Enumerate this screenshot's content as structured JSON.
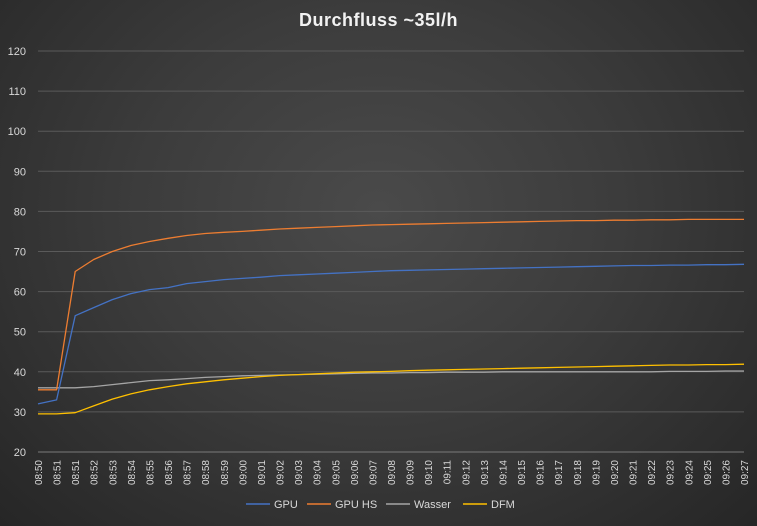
{
  "chart_data": {
    "type": "line",
    "title": "Durchfluss ~35l/h",
    "xlabel": "",
    "ylabel": "",
    "ylim": [
      20,
      120
    ],
    "yticks": [
      20,
      30,
      40,
      50,
      60,
      70,
      80,
      90,
      100,
      110,
      120
    ],
    "grid": "horizontal",
    "legend_position": "bottom",
    "categories": [
      "08:50",
      "08:51",
      "08:51",
      "08:52",
      "08:53",
      "08:54",
      "08:55",
      "08:56",
      "08:57",
      "08:58",
      "08:59",
      "09:00",
      "09:01",
      "09:02",
      "09:03",
      "09:04",
      "09:05",
      "09:06",
      "09:07",
      "09:08",
      "09:09",
      "09:10",
      "09:11",
      "09:12",
      "09:13",
      "09:14",
      "09:15",
      "09:16",
      "09:17",
      "09:18",
      "09:19",
      "09:20",
      "09:21",
      "09:22",
      "09:23",
      "09:24",
      "09:25",
      "09:26",
      "09:27"
    ],
    "series": [
      {
        "name": "GPU",
        "color": "#4472c4",
        "values": [
          32,
          33,
          54,
          56,
          58,
          59.5,
          60.5,
          61,
          62,
          62.5,
          63,
          63.3,
          63.6,
          64,
          64.2,
          64.4,
          64.6,
          64.8,
          65,
          65.2,
          65.3,
          65.4,
          65.5,
          65.6,
          65.7,
          65.8,
          65.9,
          66,
          66.1,
          66.2,
          66.3,
          66.4,
          66.5,
          66.5,
          66.6,
          66.6,
          66.7,
          66.7,
          66.8
        ]
      },
      {
        "name": "GPU HS",
        "color": "#ed7d31",
        "values": [
          35.5,
          35.5,
          65,
          68,
          70,
          71.5,
          72.5,
          73.3,
          74,
          74.5,
          74.8,
          75,
          75.3,
          75.6,
          75.8,
          76,
          76.2,
          76.4,
          76.6,
          76.7,
          76.8,
          76.9,
          77,
          77.1,
          77.2,
          77.3,
          77.4,
          77.5,
          77.6,
          77.7,
          77.7,
          77.8,
          77.8,
          77.9,
          77.9,
          78,
          78,
          78,
          78
        ]
      },
      {
        "name": "Wasser",
        "color": "#a5a5a5",
        "values": [
          36,
          36,
          36,
          36.3,
          36.8,
          37.3,
          37.8,
          38,
          38.3,
          38.6,
          38.8,
          39,
          39.1,
          39.2,
          39.3,
          39.4,
          39.5,
          39.6,
          39.7,
          39.7,
          39.8,
          39.8,
          39.9,
          39.9,
          39.9,
          40,
          40,
          40,
          40,
          40,
          40,
          40,
          40,
          40,
          40.1,
          40.1,
          40.1,
          40.2,
          40.2
        ]
      },
      {
        "name": "DFM",
        "color": "#ffc000",
        "values": [
          29.5,
          29.5,
          29.8,
          31.5,
          33.2,
          34.5,
          35.5,
          36.3,
          37,
          37.5,
          38,
          38.4,
          38.8,
          39.1,
          39.3,
          39.5,
          39.7,
          39.9,
          40,
          40.1,
          40.3,
          40.4,
          40.5,
          40.6,
          40.7,
          40.8,
          40.9,
          41,
          41.1,
          41.2,
          41.3,
          41.4,
          41.5,
          41.6,
          41.7,
          41.7,
          41.8,
          41.8,
          41.9
        ]
      }
    ]
  }
}
